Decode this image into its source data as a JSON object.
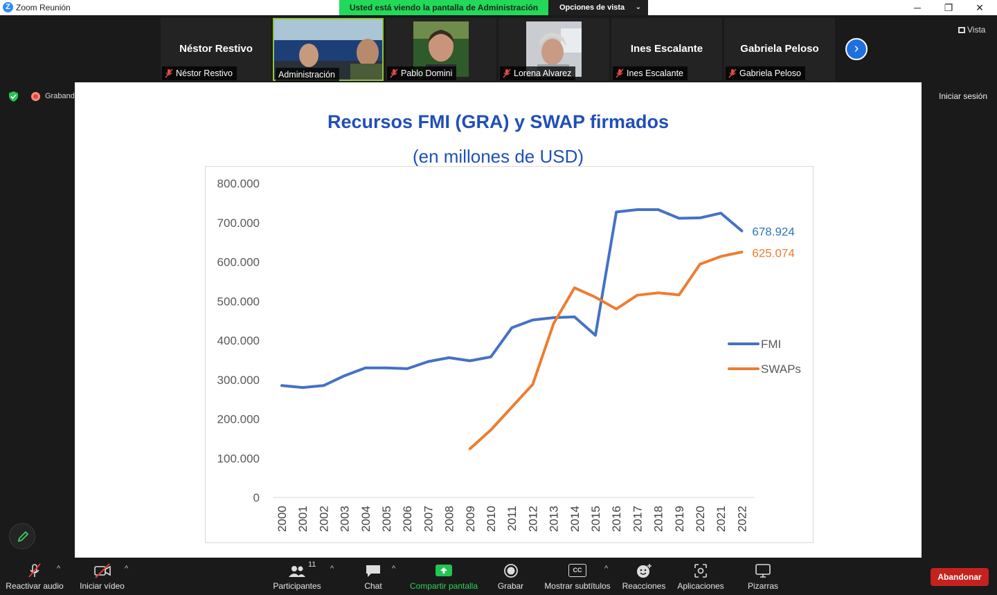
{
  "window": {
    "title": "Zoom Reunión",
    "minimize": "─",
    "maximize": "❐",
    "close": "✕"
  },
  "banner": {
    "text": "Usted está viendo la pantalla de Administración",
    "view_options": "Opciones de vista"
  },
  "gallery": {
    "tiles": [
      {
        "display": "Néstor Restivo",
        "name": "Néstor Restivo"
      },
      {
        "display": "",
        "name": "Administración"
      },
      {
        "display": "",
        "name": "Pablo Domini"
      },
      {
        "display": "",
        "name": "Lorena Alvarez"
      },
      {
        "display": "Ines Escalante",
        "name": "Ines Escalante"
      },
      {
        "display": "Gabriela Peloso",
        "name": "Gabriela Peloso"
      }
    ],
    "view_label": "Vista"
  },
  "status": {
    "recording": "Grabando",
    "sign_in": "Iniciar sesión"
  },
  "slide": {
    "title": "Recursos FMI (GRA) y SWAP firmados",
    "subtitle": "(en millones de USD)"
  },
  "chart_data": {
    "type": "line",
    "title": "Recursos FMI (GRA) y SWAP firmados",
    "subtitle": "(en millones de USD)",
    "x": [
      "2000",
      "2001",
      "2002",
      "2003",
      "2004",
      "2005",
      "2006",
      "2007",
      "2008",
      "2009",
      "2010",
      "2011",
      "2012",
      "2013",
      "2014",
      "2015",
      "2016",
      "2017",
      "2018",
      "2019",
      "2020",
      "2021",
      "2022"
    ],
    "ylim": [
      0,
      800000
    ],
    "yticks": [
      "0",
      "100.000",
      "200.000",
      "300.000",
      "400.000",
      "500.000",
      "600.000",
      "700.000",
      "800.000"
    ],
    "legend_position": "right",
    "grid": false,
    "series": [
      {
        "name": "FMI",
        "color": "#4472c4",
        "values": [
          285000,
          280000,
          285000,
          310000,
          330000,
          330000,
          328000,
          346000,
          356000,
          348000,
          358000,
          432000,
          452000,
          458000,
          460000,
          413000,
          727000,
          733000,
          733000,
          711000,
          712000,
          724000,
          678924
        ],
        "end_label": "678.924"
      },
      {
        "name": "SWAPs",
        "color": "#ed7d31",
        "values": [
          null,
          null,
          null,
          null,
          null,
          null,
          null,
          null,
          null,
          124000,
          172000,
          230000,
          288000,
          443000,
          534000,
          510000,
          480000,
          515000,
          521000,
          516000,
          594000,
          614000,
          625074
        ],
        "end_label": "625.074"
      }
    ]
  },
  "toolbar": {
    "unmute": "Reactivar audio",
    "start_video": "Iniciar vídeo",
    "participants": "Participantes",
    "participants_count": "11",
    "chat": "Chat",
    "share": "Compartir pantalla",
    "record": "Grabar",
    "captions": "Mostrar subtítulos",
    "cc": "CC",
    "reactions": "Reacciones",
    "apps": "Aplicaciones",
    "whiteboards": "Pizarras",
    "leave": "Abandonar",
    "caret": "^"
  }
}
